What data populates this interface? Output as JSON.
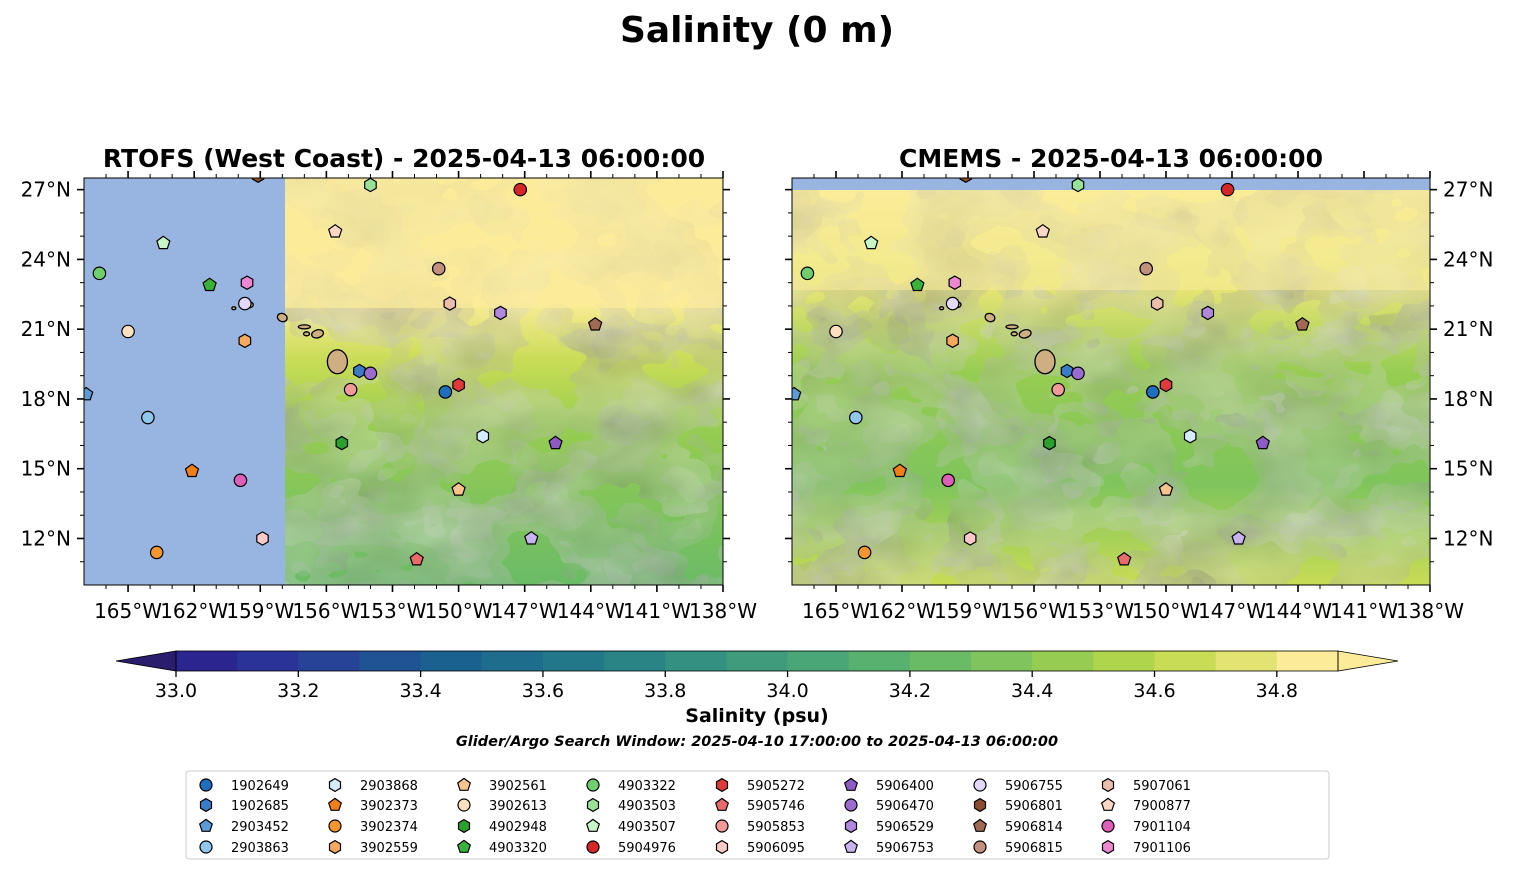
{
  "figure": {
    "suptitle": "Salinity (0 m)",
    "subtitle": "Glider/Argo Search Window: 2025-04-10 17:00:00 to 2025-04-13 06:00:00"
  },
  "chart_data": [
    {
      "type": "heatmap",
      "title": "RTOFS (West Coast) - 2025-04-13 06:00:00",
      "xlim": [
        -167,
        -138
      ],
      "ylim": [
        10,
        27.5
      ],
      "xticks": [
        "165°W",
        "162°W",
        "159°W",
        "156°W",
        "153°W",
        "150°W",
        "147°W",
        "144°W",
        "141°W",
        "138°W"
      ],
      "yticks": [
        "27°N",
        "24°N",
        "21°N",
        "18°N",
        "15°N",
        "12°N"
      ],
      "ytick_side": "left",
      "no_data_west_of": -157.9,
      "no_data_color": "#98b4e0"
    },
    {
      "type": "heatmap",
      "title": "CMEMS - 2025-04-13 06:00:00",
      "xlim": [
        -167,
        -138
      ],
      "ylim": [
        10,
        27.5
      ],
      "xticks": [
        "165°W",
        "162°W",
        "159°W",
        "156°W",
        "153°W",
        "150°W",
        "147°W",
        "144°W",
        "141°W",
        "138°W"
      ],
      "yticks": [
        "27°N",
        "24°N",
        "21°N",
        "18°N",
        "15°N",
        "12°N"
      ],
      "ytick_side": "right",
      "no_data_north_of": 27.0,
      "no_data_color": "#98b4e0"
    }
  ],
  "colorbar": {
    "label": "Salinity (psu)",
    "min": 33.0,
    "max": 34.9,
    "step": 0.1,
    "ticks": [
      "33.0",
      "33.2",
      "33.4",
      "33.6",
      "33.8",
      "34.0",
      "34.2",
      "34.4",
      "34.6",
      "34.8"
    ],
    "extend": "both",
    "colors": [
      "#2a1d6e",
      "#2b2590",
      "#2a3398",
      "#274398",
      "#1f5494",
      "#1b6190",
      "#1e6d8c",
      "#227888",
      "#2a8485",
      "#349080",
      "#3f9b7c",
      "#4aa676",
      "#59b16f",
      "#6abb66",
      "#7fc45c",
      "#96cc52",
      "#afd54c",
      "#c9dc55",
      "#e3e373",
      "#fcec9a"
    ]
  },
  "floats": [
    {
      "id": "1902649",
      "marker": "circle",
      "color": "#1f6fc0",
      "lon": -150.6,
      "lat": 18.3
    },
    {
      "id": "1902685",
      "marker": "hexagon",
      "color": "#3a7cc8",
      "lon": -154.5,
      "lat": 19.2
    },
    {
      "id": "2903452",
      "marker": "pentagon",
      "color": "#5b9bd8",
      "lon": -166.9,
      "lat": 18.2
    },
    {
      "id": "2903863",
      "marker": "circle",
      "color": "#8fc7ee",
      "lon": -164.1,
      "lat": 17.2
    },
    {
      "id": "2903868",
      "marker": "hexagon",
      "color": "#d4ecfb",
      "lon": -148.9,
      "lat": 16.4
    },
    {
      "id": "3902373",
      "marker": "pentagon",
      "color": "#f07f18",
      "lon": -162.1,
      "lat": 14.9
    },
    {
      "id": "3902374",
      "marker": "circle",
      "color": "#f3962f",
      "lon": -163.7,
      "lat": 11.4
    },
    {
      "id": "3902559",
      "marker": "hexagon",
      "color": "#f6a95c",
      "lon": -159.7,
      "lat": 20.5
    },
    {
      "id": "3902561",
      "marker": "pentagon",
      "color": "#fbc38c",
      "lon": -150.0,
      "lat": 14.1
    },
    {
      "id": "3902613",
      "marker": "circle",
      "color": "#fde0c0",
      "lon": -165.0,
      "lat": 20.9
    },
    {
      "id": "4902948",
      "marker": "hexagon",
      "color": "#2ca02c",
      "lon": -155.3,
      "lat": 16.1
    },
    {
      "id": "4903320",
      "marker": "pentagon",
      "color": "#3bb33b",
      "lon": -161.3,
      "lat": 22.9
    },
    {
      "id": "4903322",
      "marker": "circle",
      "color": "#6fcf6f",
      "lon": -166.3,
      "lat": 23.4
    },
    {
      "id": "4903503",
      "marker": "hexagon",
      "color": "#98e298",
      "lon": -154.0,
      "lat": 27.2
    },
    {
      "id": "4903507",
      "marker": "pentagon",
      "color": "#c8f6c8",
      "lon": -163.4,
      "lat": 24.7
    },
    {
      "id": "5904976",
      "marker": "circle",
      "color": "#d62728",
      "lon": -147.2,
      "lat": 27.0
    },
    {
      "id": "5905272",
      "marker": "hexagon",
      "color": "#e03a3a",
      "lon": -150.0,
      "lat": 18.6
    },
    {
      "id": "5905746",
      "marker": "pentagon",
      "color": "#e86a6a",
      "lon": -151.9,
      "lat": 11.1
    },
    {
      "id": "5905853",
      "marker": "circle",
      "color": "#f29a9a",
      "lon": -154.9,
      "lat": 18.4
    },
    {
      "id": "5906095",
      "marker": "hexagon",
      "color": "#fcc8c8",
      "lon": -158.9,
      "lat": 12.0
    },
    {
      "id": "5906400",
      "marker": "pentagon",
      "color": "#8e5bc4",
      "lon": -145.6,
      "lat": 16.1
    },
    {
      "id": "5906470",
      "marker": "circle",
      "color": "#9b6cd0",
      "lon": -154.0,
      "lat": 19.1
    },
    {
      "id": "5906529",
      "marker": "hexagon",
      "color": "#b088e0",
      "lon": -148.1,
      "lat": 21.7
    },
    {
      "id": "5906753",
      "marker": "pentagon",
      "color": "#c9b2f0",
      "lon": -146.7,
      "lat": 12.0
    },
    {
      "id": "5906755",
      "marker": "circle",
      "color": "#e3d7fa",
      "lon": -159.7,
      "lat": 22.1
    },
    {
      "id": "5906801",
      "marker": "hexagon",
      "color": "#8c4d2e",
      "lon": -159.1,
      "lat": 27.6
    },
    {
      "id": "5906814",
      "marker": "pentagon",
      "color": "#a06a52",
      "lon": -143.8,
      "lat": 21.2
    },
    {
      "id": "5906815",
      "marker": "circle",
      "color": "#c2917d",
      "lon": -150.9,
      "lat": 23.6
    },
    {
      "id": "5907061",
      "marker": "hexagon",
      "color": "#ebbdac",
      "lon": -150.4,
      "lat": 22.1
    },
    {
      "id": "7900877",
      "marker": "pentagon",
      "color": "#fcd8c4",
      "lon": -155.6,
      "lat": 25.2
    },
    {
      "id": "7901104",
      "marker": "circle",
      "color": "#dd5fb8",
      "lon": -159.9,
      "lat": 14.5
    },
    {
      "id": "7901106",
      "marker": "hexagon",
      "color": "#ec88d2",
      "lon": -159.6,
      "lat": 23.0
    }
  ]
}
